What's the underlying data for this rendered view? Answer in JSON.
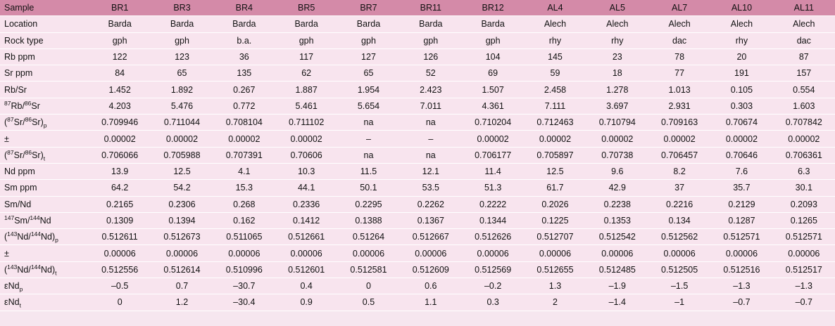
{
  "table": {
    "headers": [
      "Sample",
      "BR1",
      "BR3",
      "BR4",
      "BR5",
      "BR7",
      "BR11",
      "BR12",
      "AL4",
      "AL5",
      "AL7",
      "AL10",
      "AL11"
    ],
    "rows": [
      {
        "label": {
          "text": "Location"
        },
        "cells": [
          "Barda",
          "Barda",
          "Barda",
          "Barda",
          "Barda",
          "Barda",
          "Barda",
          "Alech",
          "Alech",
          "Alech",
          "Alech",
          "Alech"
        ]
      },
      {
        "label": {
          "text": "Rock type"
        },
        "cells": [
          "gph",
          "gph",
          "b.a.",
          "gph",
          "gph",
          "gph",
          "gph",
          "rhy",
          "rhy",
          "dac",
          "rhy",
          "dac"
        ]
      },
      {
        "label": {
          "text": "Rb ppm"
        },
        "cells": [
          "122",
          "123",
          "36",
          "117",
          "127",
          "126",
          "104",
          "145",
          "23",
          "78",
          "20",
          "87"
        ]
      },
      {
        "label": {
          "text": "Sr ppm"
        },
        "cells": [
          "84",
          "65",
          "135",
          "62",
          "65",
          "52",
          "69",
          "59",
          "18",
          "77",
          "191",
          "157"
        ]
      },
      {
        "label": {
          "text": "Rb/Sr"
        },
        "cells": [
          "1.452",
          "1.892",
          "0.267",
          "1.887",
          "1.954",
          "2.423",
          "1.507",
          "2.458",
          "1.278",
          "1.013",
          "0.105",
          "0.554"
        ]
      },
      {
        "label": {
          "sup1": "87",
          "a": "Rb/",
          "sup2": "86",
          "b": "Sr"
        },
        "cells": [
          "4.203",
          "5.476",
          "0.772",
          "5.461",
          "5.654",
          "7.011",
          "4.361",
          "7.111",
          "3.697",
          "2.931",
          "0.303",
          "1.603"
        ]
      },
      {
        "label": {
          "pre": "(",
          "sup1": "87",
          "a": "Sr/",
          "sup2": "86",
          "b": "Sr)",
          "sub": "p"
        },
        "cells": [
          "0.709946",
          "0.711044",
          "0.708104",
          "0.711102",
          "na",
          "na",
          "0.710204",
          "0.712463",
          "0.710794",
          "0.709163",
          "0.70674",
          "0.707842"
        ]
      },
      {
        "label": {
          "text": "±"
        },
        "cells": [
          "0.00002",
          "0.00002",
          "0.00002",
          "0.00002",
          "–",
          "–",
          "0.00002",
          "0.00002",
          "0.00002",
          "0.00002",
          "0.00002",
          "0.00002"
        ]
      },
      {
        "label": {
          "pre": "(",
          "sup1": "87",
          "a": "Sr/",
          "sup2": "86",
          "b": "Sr)",
          "sub": "t"
        },
        "cells": [
          "0.706066",
          "0.705988",
          "0.707391",
          "0.70606",
          "na",
          "na",
          "0.706177",
          "0.705897",
          "0.70738",
          "0.706457",
          "0.70646",
          "0.706361"
        ]
      },
      {
        "label": {
          "text": "Nd ppm"
        },
        "cells": [
          "13.9",
          "12.5",
          "4.1",
          "10.3",
          "11.5",
          "12.1",
          "11.4",
          "12.5",
          "9.6",
          "8.2",
          "7.6",
          "6.3"
        ]
      },
      {
        "label": {
          "text": "Sm ppm"
        },
        "cells": [
          "64.2",
          "54.2",
          "15.3",
          "44.1",
          "50.1",
          "53.5",
          "51.3",
          "61.7",
          "42.9",
          "37",
          "35.7",
          "30.1"
        ]
      },
      {
        "label": {
          "text": "Sm/Nd"
        },
        "cells": [
          "0.2165",
          "0.2306",
          "0.268",
          "0.2336",
          "0.2295",
          "0.2262",
          "0.2222",
          "0.2026",
          "0.2238",
          "0.2216",
          "0.2129",
          "0.2093"
        ]
      },
      {
        "label": {
          "sup1": "147",
          "a": "Sm/",
          "sup2": "144",
          "b": "Nd"
        },
        "cells": [
          "0.1309",
          "0.1394",
          "0.162",
          "0.1412",
          "0.1388",
          "0.1367",
          "0.1344",
          "0.1225",
          "0.1353",
          "0.134",
          "0.1287",
          "0.1265"
        ]
      },
      {
        "label": {
          "pre": "(",
          "sup1": "143",
          "a": "Nd/",
          "sup2": "144",
          "b": "Nd)",
          "sub": "p"
        },
        "cells": [
          "0.512611",
          "0.512673",
          "0.511065",
          "0.512661",
          "0.51264",
          "0.512667",
          "0.512626",
          "0.512707",
          "0.512542",
          "0.512562",
          "0.512571",
          "0.512571"
        ]
      },
      {
        "label": {
          "text": "±"
        },
        "cells": [
          "0.00006",
          "0.00006",
          "0.00006",
          "0.00006",
          "0.00006",
          "0.00006",
          "0.00006",
          "0.00006",
          "0.00006",
          "0.00006",
          "0.00006",
          "0.00006"
        ]
      },
      {
        "label": {
          "pre": "(",
          "sup1": "143",
          "a": "Nd/",
          "sup2": "144",
          "b": "Nd)",
          "sub": "t"
        },
        "cells": [
          "0.512556",
          "0.512614",
          "0.510996",
          "0.512601",
          "0.512581",
          "0.512609",
          "0.512569",
          "0.512655",
          "0.512485",
          "0.512505",
          "0.512516",
          "0.512517"
        ]
      },
      {
        "label": {
          "a": "εNd",
          "sub": "p"
        },
        "cells": [
          "–0.5",
          "0.7",
          "–30.7",
          "0.4",
          "0",
          "0.6",
          "–0.2",
          "1.3",
          "–1.9",
          "–1.5",
          "–1.3",
          "–1.3"
        ]
      },
      {
        "label": {
          "a": "εNd",
          "sub": "t"
        },
        "cells": [
          "0",
          "1.2",
          "–30.4",
          "0.9",
          "0.5",
          "1.1",
          "0.3",
          "2",
          "–1.4",
          "–1",
          "–0.7",
          "–0.7"
        ]
      }
    ]
  }
}
